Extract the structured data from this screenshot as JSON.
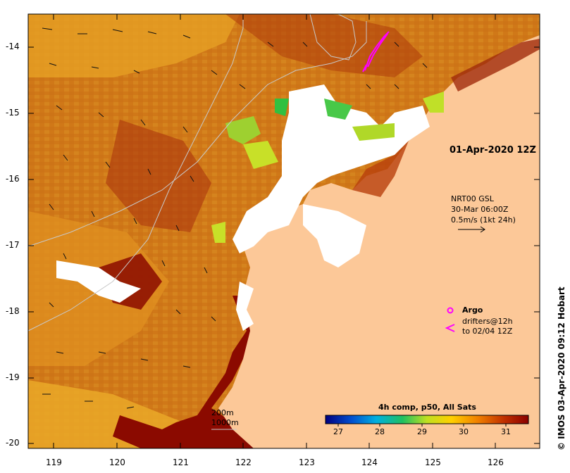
{
  "map": {
    "timestamp": "01-Apr-2020 12Z",
    "lat_ticks": [
      "-14",
      "-15",
      "-16",
      "-17",
      "-18",
      "-19",
      "-20"
    ],
    "lon_ticks": [
      "119",
      "120",
      "121",
      "122",
      "123",
      "124",
      "125",
      "126"
    ],
    "colors": {
      "land": "#fcc898",
      "sst_cool": "#e8a020",
      "sst_mid": "#d07018",
      "sst_warm": "#a02c0c",
      "sst_hot": "#8b0a00",
      "cloud": "#ffffff",
      "drifters": "#ff00ff",
      "contour": "#c8c8c8"
    }
  },
  "current_legend": {
    "line1": "NRT00 GSL",
    "line2": "30-Mar 06:00Z",
    "line3": "0.5m/s (1kt 24h)"
  },
  "symbol_legend": {
    "argo": "Argo",
    "drifters_line1": "drifters@12h",
    "drifters_line2": "to 02/04 12Z"
  },
  "depth_legend": {
    "contour1": "200m",
    "contour2": "1000m"
  },
  "colorbar": {
    "title": "4h comp, p50, All Sats",
    "ticks": [
      "27",
      "28",
      "29",
      "30",
      "31"
    ],
    "stops": [
      "#000080",
      "#0050d0",
      "#00b0e0",
      "#20c060",
      "#c0e020",
      "#ffd000",
      "#f08000",
      "#c03000",
      "#8b0000"
    ]
  },
  "credit": "© IMOS 03-Apr-2020 09:12 Hobart"
}
